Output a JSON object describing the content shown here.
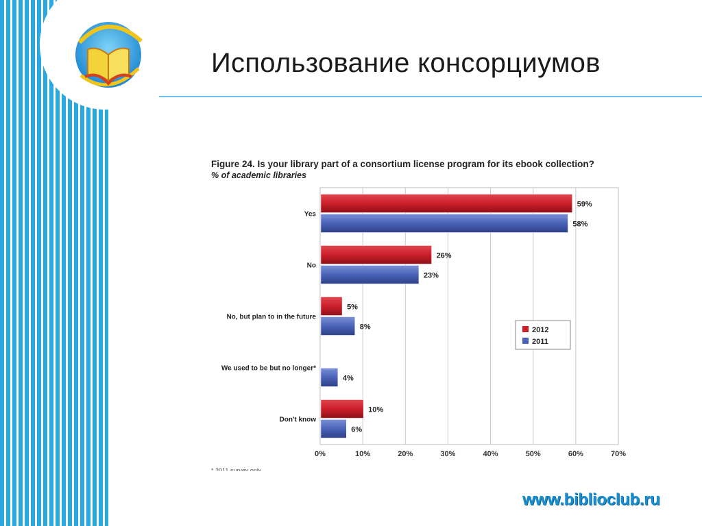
{
  "slide": {
    "title": "Использование консорциумов",
    "website": "www.biblioclub.ru"
  },
  "figure": {
    "title": "Figure 24. Is your library part of a consortium license program for its ebook collection?",
    "subtitle": "% of academic libraries",
    "footnote": "* 2011 survey only"
  },
  "colors": {
    "series_2012": "#cc1f2a",
    "series_2011": "#4a63b8",
    "accent": "#29a8e2"
  },
  "chart_data": {
    "type": "bar",
    "orientation": "horizontal",
    "categories": [
      "Yes",
      "No",
      "No, but plan to in the future",
      "We used to be but no longer*",
      "Don't know"
    ],
    "series": [
      {
        "name": "2012",
        "values": [
          59,
          26,
          5,
          null,
          10
        ],
        "labels": [
          "59%",
          "26%",
          "5%",
          "",
          "10%"
        ]
      },
      {
        "name": "2011",
        "values": [
          58,
          23,
          8,
          4,
          6
        ],
        "labels": [
          "58%",
          "23%",
          "8%",
          "4%",
          "6%"
        ]
      }
    ],
    "xlim": [
      0,
      70
    ],
    "xticks": [
      "0%",
      "10%",
      "20%",
      "30%",
      "40%",
      "50%",
      "60%",
      "70%"
    ],
    "grid": true,
    "legend": "right"
  }
}
